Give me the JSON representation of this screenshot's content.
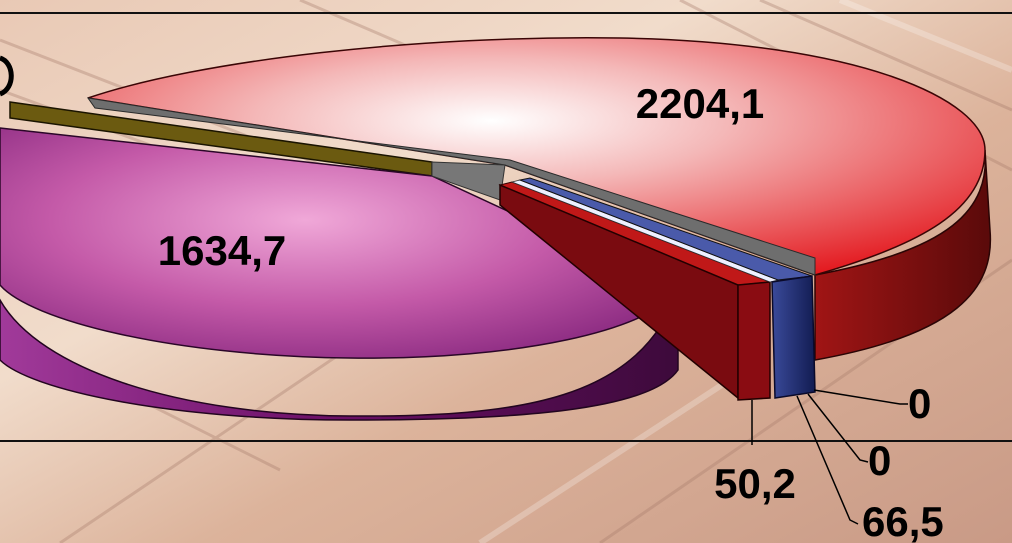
{
  "chart_data": {
    "type": "pie",
    "style": "3d-exploded",
    "title": "",
    "legend": "none",
    "slices": [
      {
        "label": "2204,1",
        "value": 2204.1,
        "color": "#e3151b"
      },
      {
        "label": "1634,7",
        "value": 1634.7,
        "color": "#8e1f86"
      },
      {
        "label": "50,2",
        "value": 50.2,
        "color": "#7a0b10"
      },
      {
        "label": "66,5",
        "value": 66.5,
        "color": "#1c2a6e"
      },
      {
        "label": "0",
        "value": 0,
        "color": "#ff1a1a"
      },
      {
        "label": "0",
        "value": 0,
        "color": "#2a2a80"
      },
      {
        "label": "",
        "value": null,
        "color": "#6b5a10"
      }
    ]
  }
}
